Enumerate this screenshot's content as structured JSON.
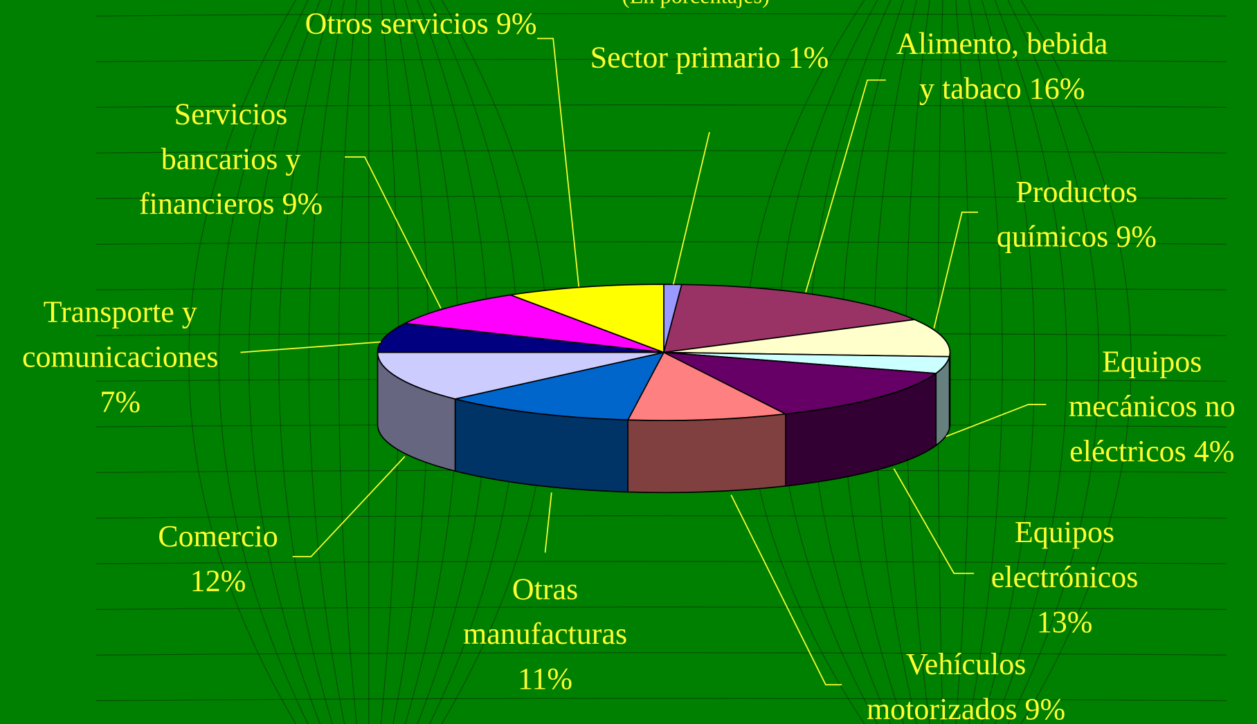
{
  "chart_data": {
    "type": "pie",
    "subtitle": "(En porcentajes)",
    "categories": [
      "Sector primario",
      "Alimento, bebida y tabaco",
      "Productos químicos",
      "Equipos mecánicos no eléctricos",
      "Equipos electrónicos",
      "Vehículos motorizados",
      "Otras manufacturas",
      "Comercio",
      "Transporte y comunicaciones",
      "Servicios bancarios y financieros",
      "Otros servicios"
    ],
    "values": [
      1,
      16,
      9,
      4,
      13,
      9,
      11,
      12,
      7,
      9,
      9
    ],
    "value_labels": [
      "1%",
      "16%",
      "9%",
      "4%",
      "13%",
      "9%",
      "11%",
      "12%",
      "7%",
      "9%",
      "9%"
    ],
    "colors": [
      "#9999ff",
      "#993366",
      "#ffffcc",
      "#ccffff",
      "#660066",
      "#ff8080",
      "#0066cc",
      "#ccccff",
      "#000080",
      "#ff00ff",
      "#ffff00"
    ]
  }
}
